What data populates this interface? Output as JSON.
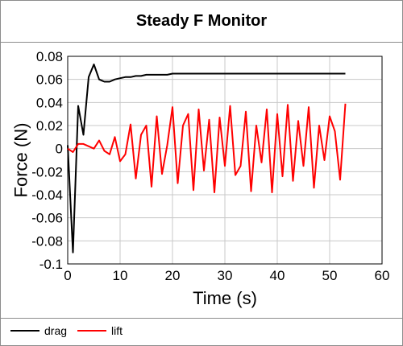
{
  "chart_data": {
    "type": "line",
    "title": "Steady F Monitor",
    "xlabel": "Time (s)",
    "ylabel": "Force (N)",
    "xlim": [
      0,
      60
    ],
    "ylim": [
      -0.1,
      0.08
    ],
    "xticks": [
      0,
      10,
      20,
      30,
      40,
      50,
      60
    ],
    "xtick_labels": [
      "0",
      "10",
      "20",
      "30",
      "40",
      "50",
      "60"
    ],
    "yticks": [
      0.08,
      0.06,
      0.04,
      0.02,
      0,
      -0.02,
      -0.04,
      -0.06,
      -0.08,
      -0.1
    ],
    "ytick_labels": [
      "0.08",
      "0.06",
      "0.04",
      "0.02",
      "0",
      "-0.02",
      "-0.04",
      "-0.06",
      "-0.08",
      "-0.1"
    ],
    "grid": true,
    "legend_position": "bottom",
    "series": [
      {
        "name": "drag",
        "color": "#000000",
        "x": [
          0,
          1,
          2,
          3,
          4,
          5,
          6,
          7,
          8,
          9,
          10,
          11,
          12,
          13,
          14,
          15,
          16,
          17,
          18,
          19,
          20,
          21,
          22,
          23,
          24,
          25,
          26,
          27,
          28,
          29,
          30,
          31,
          32,
          33,
          34,
          35,
          36,
          37,
          38,
          39,
          40,
          41,
          42,
          43,
          44,
          45,
          46,
          47,
          48,
          49,
          50,
          51,
          52,
          53
        ],
        "values": [
          0.003,
          -0.09,
          0.037,
          0.012,
          0.062,
          0.073,
          0.06,
          0.058,
          0.058,
          0.06,
          0.061,
          0.062,
          0.062,
          0.063,
          0.063,
          0.064,
          0.064,
          0.064,
          0.064,
          0.064,
          0.065,
          0.065,
          0.065,
          0.065,
          0.065,
          0.065,
          0.065,
          0.065,
          0.065,
          0.065,
          0.065,
          0.065,
          0.065,
          0.065,
          0.065,
          0.065,
          0.065,
          0.065,
          0.065,
          0.065,
          0.065,
          0.065,
          0.065,
          0.065,
          0.065,
          0.065,
          0.065,
          0.065,
          0.065,
          0.065,
          0.065,
          0.065,
          0.065,
          0.065
        ]
      },
      {
        "name": "lift",
        "color": "#ff0000",
        "x": [
          0,
          1,
          2,
          3,
          4,
          5,
          6,
          7,
          8,
          9,
          10,
          11,
          12,
          13,
          14,
          15,
          16,
          17,
          18,
          19,
          20,
          21,
          22,
          23,
          24,
          25,
          26,
          27,
          28,
          29,
          30,
          31,
          32,
          33,
          34,
          35,
          36,
          37,
          38,
          39,
          40,
          41,
          42,
          43,
          44,
          45,
          46,
          47,
          48,
          49,
          50,
          51,
          52,
          53
        ],
        "values": [
          0.0,
          -0.003,
          0.004,
          0.004,
          0.002,
          0.0,
          0.007,
          -0.002,
          -0.005,
          0.01,
          -0.011,
          -0.005,
          0.021,
          -0.026,
          0.012,
          0.02,
          -0.033,
          0.028,
          -0.022,
          0.003,
          0.036,
          -0.03,
          0.02,
          0.03,
          -0.036,
          0.034,
          -0.019,
          0.025,
          -0.038,
          0.027,
          -0.015,
          0.037,
          -0.023,
          -0.015,
          0.032,
          -0.037,
          0.02,
          -0.012,
          0.034,
          -0.038,
          0.03,
          -0.024,
          0.038,
          -0.028,
          0.024,
          -0.015,
          0.036,
          -0.034,
          0.02,
          -0.01,
          0.028,
          0.015,
          -0.027,
          0.039
        ]
      }
    ]
  }
}
